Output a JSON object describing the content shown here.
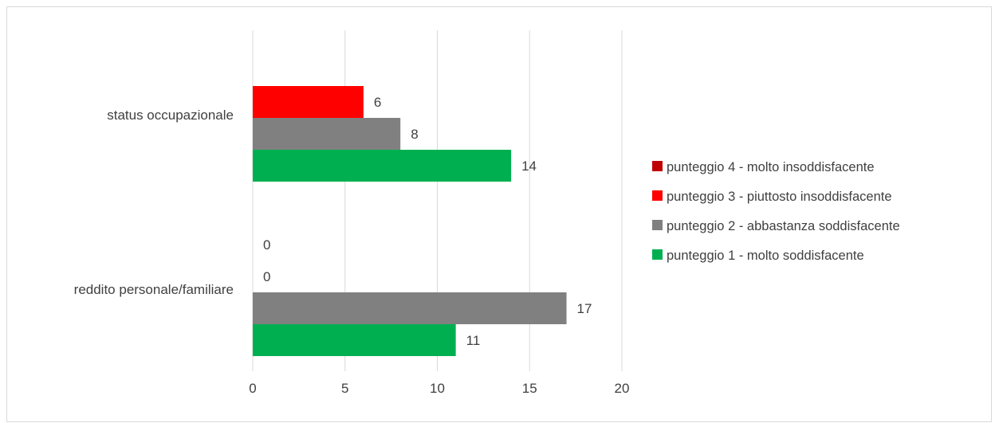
{
  "chart_data": {
    "type": "bar",
    "orientation": "horizontal",
    "categories": [
      "reddito personale/familiare",
      "status occupazionale"
    ],
    "series": [
      {
        "name": "punteggio 1 - molto soddisfacente",
        "color": "#00b050",
        "values": [
          11,
          14
        ]
      },
      {
        "name": "punteggio 2 - abbastanza soddisfacente",
        "color": "#808080",
        "values": [
          17,
          8
        ]
      },
      {
        "name": "punteggio 3 - piuttosto insoddisfacente",
        "color": "#ff0000",
        "values": [
          0,
          6
        ]
      },
      {
        "name": "punteggio 4 - molto insoddisfacente",
        "color": "#c00000",
        "values": [
          0,
          null
        ]
      }
    ],
    "xlim": [
      0,
      20
    ],
    "xticks": [
      0,
      5,
      10,
      15,
      20
    ],
    "grid": true,
    "legend_position": "right",
    "data_labels": true
  }
}
